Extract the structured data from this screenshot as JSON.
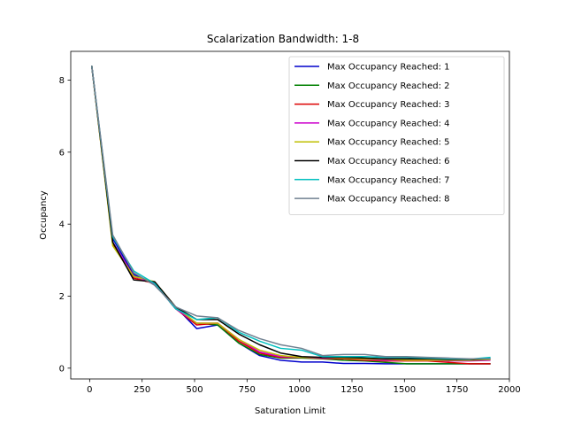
{
  "chart_data": {
    "type": "line",
    "title": "Scalarization Bandwidth: 1-8",
    "xlabel": "Saturation Limit",
    "ylabel": "Occupancy",
    "xlim": [
      -90,
      2000
    ],
    "ylim": [
      -0.3,
      8.8
    ],
    "xticks": [
      0,
      250,
      500,
      750,
      1000,
      1250,
      1500,
      1750,
      2000
    ],
    "yticks": [
      0,
      2,
      4,
      6,
      8
    ],
    "grid": false,
    "legend_position": "top-right",
    "x": [
      10,
      110,
      210,
      310,
      410,
      510,
      610,
      710,
      810,
      910,
      1010,
      1110,
      1210,
      1310,
      1410,
      1510,
      1610,
      1710,
      1810,
      1910
    ],
    "series": [
      {
        "name": "Max Occupancy Reached: 1",
        "color": "#0000cc",
        "values": [
          8.4,
          3.6,
          2.6,
          2.35,
          1.7,
          1.1,
          1.2,
          0.7,
          0.35,
          0.22,
          0.17,
          0.17,
          0.13,
          0.13,
          0.12,
          0.12,
          0.12,
          0.12,
          0.12,
          0.12
        ]
      },
      {
        "name": "Max Occupancy Reached: 2",
        "color": "#008000",
        "values": [
          8.4,
          3.5,
          2.55,
          2.35,
          1.65,
          1.25,
          1.2,
          0.7,
          0.38,
          0.28,
          0.28,
          0.26,
          0.22,
          0.2,
          0.16,
          0.12,
          0.12,
          0.12,
          0.12,
          0.12
        ]
      },
      {
        "name": "Max Occupancy Reached: 3",
        "color": "#dd0000",
        "values": [
          8.4,
          3.45,
          2.5,
          2.35,
          1.65,
          1.2,
          1.25,
          0.75,
          0.42,
          0.3,
          0.3,
          0.27,
          0.26,
          0.22,
          0.2,
          0.2,
          0.2,
          0.16,
          0.12,
          0.12
        ]
      },
      {
        "name": "Max Occupancy Reached: 4",
        "color": "#cc00cc",
        "values": [
          8.4,
          3.5,
          2.55,
          2.35,
          1.65,
          1.25,
          1.25,
          0.8,
          0.45,
          0.32,
          0.3,
          0.28,
          0.28,
          0.24,
          0.22,
          0.22,
          0.22,
          0.2,
          0.2,
          0.22
        ]
      },
      {
        "name": "Max Occupancy Reached: 5",
        "color": "#bfbf00",
        "values": [
          8.4,
          3.4,
          2.55,
          2.4,
          1.7,
          1.25,
          1.25,
          0.8,
          0.5,
          0.35,
          0.3,
          0.3,
          0.28,
          0.25,
          0.25,
          0.22,
          0.22,
          0.22,
          0.22,
          0.24
        ]
      },
      {
        "name": "Max Occupancy Reached: 6",
        "color": "#000000",
        "values": [
          8.4,
          3.5,
          2.45,
          2.4,
          1.7,
          1.35,
          1.35,
          0.95,
          0.65,
          0.42,
          0.32,
          0.3,
          0.3,
          0.28,
          0.26,
          0.26,
          0.26,
          0.24,
          0.24,
          0.26
        ]
      },
      {
        "name": "Max Occupancy Reached: 7",
        "color": "#00bfbf",
        "values": [
          8.4,
          3.65,
          2.7,
          2.35,
          1.65,
          1.35,
          1.4,
          1.0,
          0.75,
          0.55,
          0.5,
          0.32,
          0.32,
          0.32,
          0.3,
          0.3,
          0.28,
          0.26,
          0.25,
          0.3
        ]
      },
      {
        "name": "Max Occupancy Reached: 8",
        "color": "#708090",
        "values": [
          8.4,
          3.7,
          2.65,
          2.3,
          1.7,
          1.45,
          1.4,
          1.05,
          0.82,
          0.65,
          0.55,
          0.35,
          0.38,
          0.38,
          0.32,
          0.32,
          0.3,
          0.28,
          0.26,
          0.26
        ]
      }
    ]
  }
}
